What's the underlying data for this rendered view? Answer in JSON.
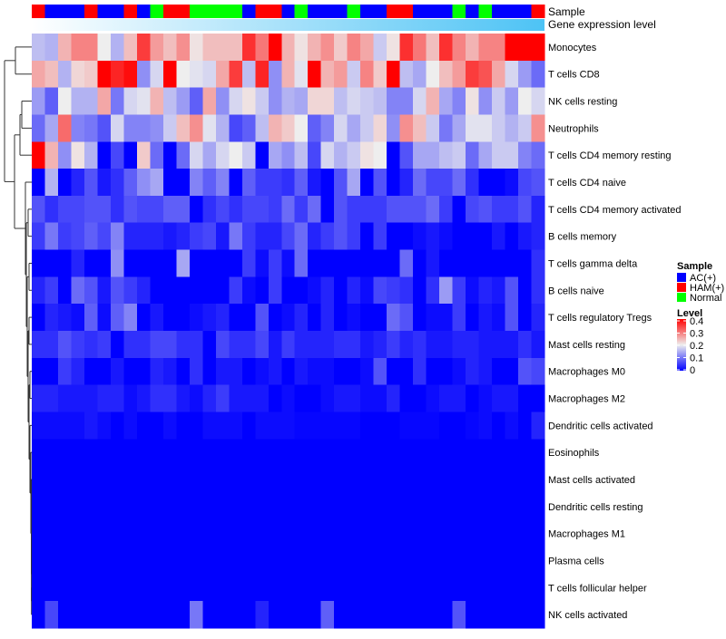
{
  "chart_data": {
    "type": "heatmap",
    "title": "",
    "annotations": {
      "sample_label": "Sample",
      "gene_label": "Gene expression level",
      "samples": [
        "HAM(+)",
        "AC(+)",
        "AC(+)",
        "AC(+)",
        "HAM(+)",
        "AC(+)",
        "AC(+)",
        "HAM(+)",
        "AC(+)",
        "Normal",
        "HAM(+)",
        "HAM(+)",
        "Normal",
        "Normal",
        "Normal",
        "Normal",
        "AC(+)",
        "HAM(+)",
        "HAM(+)",
        "AC(+)",
        "Normal",
        "AC(+)",
        "AC(+)",
        "AC(+)",
        "Normal",
        "AC(+)",
        "AC(+)",
        "HAM(+)",
        "HAM(+)",
        "AC(+)",
        "AC(+)",
        "AC(+)",
        "Normal",
        "AC(+)",
        "Normal",
        "AC(+)",
        "AC(+)",
        "AC(+)",
        "HAM(+)"
      ],
      "gene_gradient": [
        "#ffffff",
        "#4dc3f5"
      ]
    },
    "legend": {
      "sample_title": "Sample",
      "sample_entries": [
        {
          "label": "AC(+)",
          "color": "#0000ff"
        },
        {
          "label": "HAM(+)",
          "color": "#ff0000"
        },
        {
          "label": "Normal",
          "color": "#00ff00"
        }
      ],
      "level_title": "Level",
      "level_ticks": [
        "0.4",
        "0.3",
        "0.2",
        "0.1",
        "0"
      ],
      "placement": "right"
    },
    "color_scale": {
      "min": 0,
      "mid": 0.2,
      "max": 0.4,
      "low": "#0000ff",
      "midcolor": "#eeeeee",
      "high": "#ff0000"
    },
    "rows": [
      {
        "name": "Monocytes",
        "values": [
          0.16,
          0.15,
          0.25,
          0.29,
          0.29,
          0.2,
          0.15,
          0.24,
          0.35,
          0.27,
          0.24,
          0.28,
          0.21,
          0.24,
          0.24,
          0.24,
          0.36,
          0.3,
          0.4,
          0.25,
          0.21,
          0.25,
          0.28,
          0.23,
          0.29,
          0.26,
          0.17,
          0.21,
          0.36,
          0.3,
          0.24,
          0.36,
          0.29,
          0.25,
          0.29,
          0.29,
          0.4,
          0.4,
          0.4
        ]
      },
      {
        "name": "T cells CD8",
        "values": [
          0.26,
          0.24,
          0.15,
          0.22,
          0.23,
          0.4,
          0.37,
          0.39,
          0.12,
          0.18,
          0.4,
          0.2,
          0.19,
          0.18,
          0.26,
          0.35,
          0.16,
          0.37,
          0.12,
          0.25,
          0.19,
          0.4,
          0.25,
          0.27,
          0.17,
          0.29,
          0.23,
          0.4,
          0.16,
          0.14,
          0.2,
          0.24,
          0.27,
          0.35,
          0.33,
          0.26,
          0.18,
          0.13,
          0.09
        ]
      },
      {
        "name": "NK cells resting",
        "values": [
          0.13,
          0.08,
          0.2,
          0.15,
          0.15,
          0.26,
          0.1,
          0.18,
          0.19,
          0.25,
          0.16,
          0.13,
          0.08,
          0.26,
          0.12,
          0.18,
          0.21,
          0.17,
          0.12,
          0.15,
          0.14,
          0.22,
          0.22,
          0.16,
          0.18,
          0.17,
          0.16,
          0.11,
          0.11,
          0.18,
          0.25,
          0.14,
          0.11,
          0.21,
          0.12,
          0.17,
          0.13,
          0.2,
          0.18
        ]
      },
      {
        "name": "Neutrophils",
        "values": [
          0.09,
          0.14,
          0.31,
          0.11,
          0.1,
          0.07,
          0.18,
          0.11,
          0.11,
          0.12,
          0.17,
          0.24,
          0.28,
          0.19,
          0.15,
          0.06,
          0.08,
          0.16,
          0.25,
          0.23,
          0.2,
          0.08,
          0.11,
          0.18,
          0.14,
          0.17,
          0.22,
          0.12,
          0.28,
          0.24,
          0.17,
          0.1,
          0.14,
          0.19,
          0.19,
          0.17,
          0.15,
          0.17,
          0.28
        ]
      },
      {
        "name": "T cells CD4 memory resting",
        "values": [
          0.4,
          0.25,
          0.12,
          0.21,
          0.15,
          0,
          0.06,
          0,
          0.23,
          0.09,
          0,
          0.09,
          0.18,
          0.14,
          0.18,
          0.2,
          0.17,
          0,
          0.14,
          0.12,
          0.16,
          0.06,
          0.18,
          0.15,
          0.17,
          0.21,
          0.2,
          0,
          0.07,
          0.14,
          0.14,
          0.16,
          0.17,
          0.09,
          0.14,
          0.17,
          0.17,
          0.11,
          0.09
        ]
      },
      {
        "name": "T cells CD4 naive",
        "values": [
          0,
          0.15,
          0,
          0.03,
          0.07,
          0.02,
          0.04,
          0.08,
          0.12,
          0.14,
          0,
          0,
          0.11,
          0.08,
          0.11,
          0,
          0.08,
          0.05,
          0.05,
          0.04,
          0.08,
          0.02,
          0,
          0.07,
          0.14,
          0,
          0.07,
          0,
          0.03,
          0.09,
          0.06,
          0.06,
          0.09,
          0.04,
          0,
          0,
          0.01,
          0.06,
          0.07
        ]
      },
      {
        "name": "T cells CD4 memory activated",
        "values": [
          0.07,
          0.04,
          0.06,
          0.06,
          0.07,
          0.07,
          0.04,
          0.07,
          0.06,
          0.06,
          0.08,
          0.08,
          0,
          0.04,
          0.06,
          0.04,
          0.06,
          0.06,
          0.05,
          0.09,
          0.05,
          0.09,
          0,
          0.07,
          0.05,
          0.05,
          0.05,
          0.07,
          0.07,
          0.07,
          0.09,
          0.05,
          0,
          0.06,
          0.07,
          0.05,
          0.05,
          0.07,
          0.03
        ]
      },
      {
        "name": "B cells memory",
        "values": [
          0.05,
          0.1,
          0.05,
          0.06,
          0.08,
          0.06,
          0.11,
          0.03,
          0.03,
          0.03,
          0.02,
          0.03,
          0.05,
          0.06,
          0.02,
          0.1,
          0.05,
          0.03,
          0.03,
          0.06,
          0.09,
          0.03,
          0.05,
          0.07,
          0.05,
          0,
          0.05,
          0,
          0,
          0.01,
          0.02,
          0.01,
          0,
          0,
          0,
          0.02,
          0,
          0.02,
          0.03
        ]
      },
      {
        "name": "T cells gamma delta",
        "values": [
          0,
          0,
          0,
          0.03,
          0,
          0,
          0.12,
          0,
          0,
          0,
          0,
          0.14,
          0,
          0,
          0,
          0,
          0.05,
          0.01,
          0.05,
          0.01,
          0.09,
          0,
          0,
          0,
          0,
          0,
          0,
          0,
          0.09,
          0,
          0.02,
          0,
          0,
          0,
          0,
          0,
          0,
          0,
          0.04
        ]
      },
      {
        "name": "B cells naive",
        "values": [
          0.03,
          0.05,
          0,
          0.09,
          0.07,
          0.02,
          0.07,
          0.05,
          0.03,
          0,
          0,
          0,
          0,
          0,
          0,
          0.05,
          0.01,
          0,
          0.05,
          0,
          0,
          0.01,
          0.03,
          0,
          0.03,
          0.01,
          0.06,
          0.05,
          0.04,
          0,
          0.04,
          0.13,
          0.05,
          0.01,
          0.03,
          0.02,
          0.07,
          0,
          0.04
        ]
      },
      {
        "name": "T cells regulatory  Tregs",
        "values": [
          0,
          0.03,
          0.02,
          0.01,
          0.08,
          0.01,
          0.08,
          0.11,
          0,
          0.02,
          0,
          0,
          0.01,
          0.02,
          0.03,
          0,
          0,
          0.07,
          0,
          0.01,
          0.03,
          0,
          0.03,
          0,
          0.01,
          0,
          0,
          0.09,
          0.07,
          0,
          0.01,
          0.01,
          0.05,
          0,
          0.02,
          0.01,
          0.07,
          0,
          0.03
        ]
      },
      {
        "name": "Mast cells resting",
        "values": [
          0.04,
          0.04,
          0.07,
          0.05,
          0.04,
          0.05,
          0,
          0.04,
          0.04,
          0.06,
          0.06,
          0.04,
          0.04,
          0,
          0.06,
          0.04,
          0.04,
          0.06,
          0.02,
          0.05,
          0.03,
          0.03,
          0.03,
          0.04,
          0.04,
          0.02,
          0.03,
          0.05,
          0.03,
          0.04,
          0.02,
          0.02,
          0.03,
          0.03,
          0.02,
          0.02,
          0.02,
          0.04,
          0.02
        ]
      },
      {
        "name": "Macrophages M0",
        "values": [
          0,
          0,
          0.05,
          0.03,
          0,
          0,
          0.02,
          0,
          0,
          0.03,
          0.02,
          0,
          0.04,
          0,
          0.02,
          0.02,
          0,
          0.01,
          0.02,
          0,
          0.02,
          0.01,
          0.01,
          0,
          0,
          0.01,
          0.07,
          0,
          0,
          0.04,
          0,
          0,
          0.01,
          0.03,
          0.02,
          0,
          0,
          0.07,
          0.06
        ]
      },
      {
        "name": "Macrophages M2",
        "values": [
          0.03,
          0.03,
          0.02,
          0.02,
          0.02,
          0.03,
          0.03,
          0.01,
          0.02,
          0.04,
          0.04,
          0.02,
          0.01,
          0.03,
          0.05,
          0.02,
          0.02,
          0.02,
          0,
          0.01,
          0,
          0,
          0.01,
          0.02,
          0.02,
          0.01,
          0.01,
          0.03,
          0,
          0,
          0.01,
          0.02,
          0.02,
          0,
          0.01,
          0.02,
          0.02,
          0,
          0
        ]
      },
      {
        "name": "Dendritic cells activated",
        "values": [
          0.01,
          0.01,
          0.01,
          0.01,
          0.02,
          0.01,
          0,
          0.01,
          0,
          0,
          0.01,
          0,
          0,
          0.01,
          0.01,
          0.01,
          0,
          0.01,
          0.01,
          0.01,
          0.005,
          0.005,
          0.005,
          0.005,
          0.005,
          0,
          0,
          0,
          0.005,
          0.005,
          0.005,
          0,
          0,
          0.005,
          0.01,
          0,
          0.01,
          0,
          0.03
        ]
      },
      {
        "name": "Eosinophils",
        "values": [
          0,
          0,
          0,
          0,
          0,
          0,
          0,
          0,
          0,
          0,
          0,
          0,
          0,
          0,
          0,
          0,
          0,
          0,
          0,
          0,
          0,
          0,
          0,
          0,
          0,
          0,
          0,
          0,
          0,
          0,
          0,
          0,
          0,
          0,
          0,
          0,
          0,
          0,
          0
        ]
      },
      {
        "name": "Mast cells activated",
        "values": [
          0,
          0,
          0,
          0,
          0,
          0,
          0,
          0,
          0,
          0,
          0,
          0,
          0,
          0,
          0,
          0,
          0,
          0,
          0,
          0,
          0,
          0,
          0,
          0,
          0,
          0,
          0,
          0,
          0,
          0,
          0,
          0,
          0,
          0,
          0,
          0,
          0,
          0,
          0
        ]
      },
      {
        "name": "Dendritic cells resting",
        "values": [
          0,
          0,
          0,
          0,
          0,
          0,
          0,
          0,
          0,
          0,
          0,
          0,
          0,
          0,
          0,
          0,
          0,
          0,
          0,
          0,
          0,
          0,
          0,
          0,
          0,
          0,
          0,
          0,
          0,
          0,
          0,
          0,
          0,
          0,
          0,
          0,
          0,
          0,
          0
        ]
      },
      {
        "name": "Macrophages M1",
        "values": [
          0,
          0,
          0,
          0,
          0,
          0,
          0,
          0,
          0,
          0,
          0,
          0,
          0,
          0,
          0,
          0,
          0,
          0,
          0,
          0,
          0,
          0,
          0,
          0,
          0,
          0,
          0,
          0,
          0,
          0,
          0,
          0,
          0,
          0,
          0,
          0,
          0,
          0,
          0
        ]
      },
      {
        "name": "Plasma cells",
        "values": [
          0,
          0,
          0,
          0,
          0,
          0,
          0,
          0,
          0,
          0,
          0,
          0,
          0,
          0,
          0,
          0,
          0,
          0,
          0,
          0,
          0,
          0,
          0,
          0,
          0,
          0,
          0,
          0,
          0,
          0,
          0,
          0,
          0,
          0,
          0,
          0,
          0,
          0,
          0
        ]
      },
      {
        "name": "T cells follicular helper",
        "values": [
          0,
          0,
          0,
          0,
          0,
          0,
          0,
          0,
          0,
          0,
          0,
          0,
          0,
          0,
          0,
          0,
          0,
          0,
          0,
          0,
          0,
          0,
          0,
          0,
          0,
          0,
          0,
          0,
          0,
          0,
          0,
          0,
          0,
          0,
          0,
          0,
          0,
          0,
          0
        ]
      },
      {
        "name": "NK cells activated",
        "values": [
          0,
          0.06,
          0,
          0,
          0,
          0,
          0,
          0,
          0,
          0,
          0,
          0,
          0.1,
          0,
          0,
          0,
          0,
          0.03,
          0,
          0,
          0,
          0,
          0.08,
          0,
          0,
          0,
          0,
          0,
          0,
          0,
          0,
          0,
          0.07,
          0,
          0,
          0,
          0,
          0,
          0
        ]
      }
    ]
  }
}
